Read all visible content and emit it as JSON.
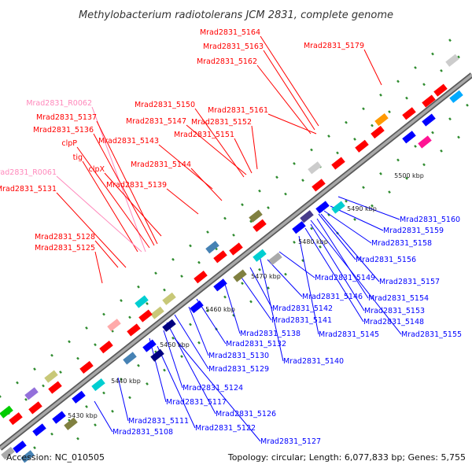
{
  "title": "Methylobacterium radiotolerans JCM 2831, complete genome",
  "footer": {
    "accession": "Accession: NC_010505",
    "summary": "Topology: circular; Length: 6,077,833 bp; Genes: 5,755"
  },
  "colors": {
    "backbone": "#8c8c8c",
    "forward_gene": "#ff0000",
    "reverse_gene": "#0000ff",
    "rna_label": "#ff88bb",
    "tick": "#228822"
  },
  "ticks": [
    "5430 kbp",
    "5440 kbp",
    "5450 kbp",
    "5460 kbp",
    "5470 kbp",
    "5480 kbp",
    "5490 kbp",
    "5500 kbp"
  ],
  "forward_labels": [
    "Mrad2831_5164",
    "Mrad2831_5163",
    "Mrad2831_5162",
    "Mrad2831_5179",
    "Mrad2831_R0062",
    "Mrad2831_5150",
    "Mrad2831_5161",
    "Mrad2831_5137",
    "Mrad2831_5147",
    "Mrad2831_5152",
    "Mrad2831_5136",
    "Mrad2831_5151",
    "clpP",
    "Mrad2831_5143",
    "tig",
    "Mrad2831_5144",
    "clpX",
    "Mrad2831_R0061",
    "Mrad2831_5139",
    "Mrad2831_5131",
    "Mrad2831_5128",
    "Mrad2831_5125"
  ],
  "reverse_labels": [
    "Mrad2831_5160",
    "Mrad2831_5159",
    "Mrad2831_5158",
    "Mrad2831_5156",
    "Mrad2831_5157",
    "Mrad2831_5149",
    "Mrad2831_5154",
    "Mrad2831_5146",
    "Mrad2831_5153",
    "Mrad2831_5142",
    "Mrad2831_5148",
    "Mrad2831_5141",
    "Mrad2831_5138",
    "Mrad2831_5145",
    "Mrad2831_5155",
    "Mrad2831_5132",
    "Mrad2831_5130",
    "Mrad2831_5140",
    "Mrad2831_5129",
    "Mrad2831_5124",
    "Mrad2831_5117",
    "Mrad2831_5126",
    "Mrad2831_5111",
    "Mrad2831_5122",
    "Mrad2831_5108",
    "Mrad2831_5127"
  ]
}
